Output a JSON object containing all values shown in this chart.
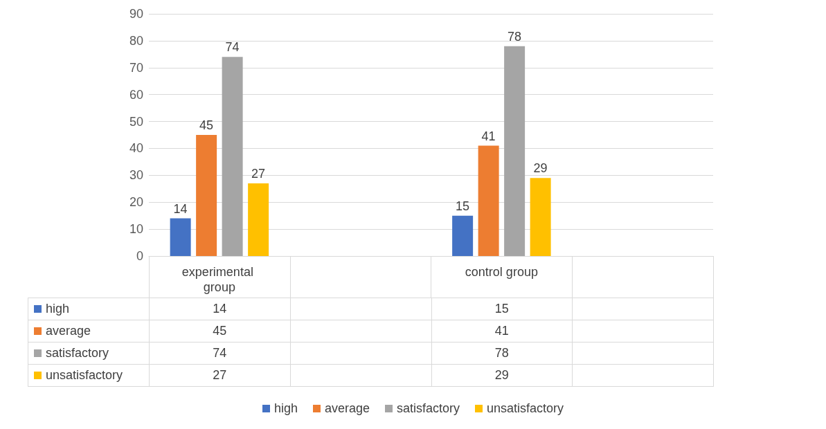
{
  "chart_data": {
    "type": "bar",
    "categories": [
      "experimental group",
      null,
      "control group",
      null
    ],
    "series": [
      {
        "name": "high",
        "color": "#4472c4",
        "values": [
          14,
          null,
          15,
          null
        ],
        "value_labels": [
          "14",
          null,
          "15",
          null
        ]
      },
      {
        "name": "average",
        "color": "#ed7d31",
        "values": [
          45,
          null,
          41,
          null
        ],
        "value_labels": [
          "45",
          null,
          "41",
          null
        ]
      },
      {
        "name": "satisfactory",
        "color": "#a5a5a5",
        "values": [
          74,
          null,
          78,
          null
        ],
        "value_labels": [
          "74",
          null,
          "78",
          null
        ]
      },
      {
        "name": "unsatisfactory",
        "color": "#ffc000",
        "values": [
          27,
          null,
          29,
          null
        ],
        "value_labels": [
          "27",
          null,
          "29",
          null
        ]
      }
    ],
    "ylim": [
      0,
      90
    ],
    "yticks": [
      0,
      10,
      20,
      30,
      40,
      50,
      60,
      70,
      80,
      90
    ],
    "grid": "y",
    "legend": "bottom",
    "data_labels": true
  }
}
